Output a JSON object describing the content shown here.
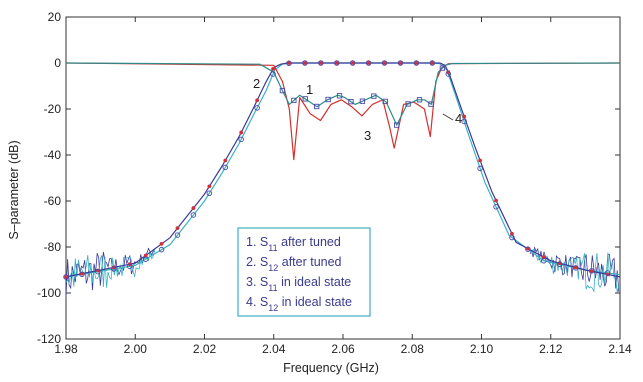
{
  "chart_data": {
    "type": "line",
    "xlabel": "Frequency (GHz)",
    "ylabel": "S–parameter (dB)",
    "xlim": [
      1.98,
      2.14
    ],
    "ylim": [
      -120,
      20
    ],
    "xticks": [
      "1.98",
      "2.00",
      "2.02",
      "2.04",
      "2.06",
      "2.08",
      "2.10",
      "2.12",
      "2.14"
    ],
    "yticks": [
      "20",
      "0",
      "-20",
      "-40",
      "-60",
      "-80",
      "-100",
      "-120"
    ],
    "grid": false,
    "legend_position": "bottom-center",
    "legend": [
      {
        "num": "1. S",
        "sub": "11",
        "rest": " after tuned"
      },
      {
        "num": "2. S",
        "sub": "12",
        "rest": " after tuned"
      },
      {
        "num": "3. S",
        "sub": "11",
        "rest": " in ideal state"
      },
      {
        "num": "4. S",
        "sub": "12",
        "rest": " in ideal state"
      }
    ],
    "curve_labels": [
      "1",
      "2",
      "3",
      "4"
    ],
    "colors": {
      "s11_tuned": "#2e8b8b",
      "s12_tuned": "#3a3a9a",
      "s11_ideal": "#d23030",
      "s12_ideal": "#3cb0c0",
      "marker_red": "#d0303a",
      "marker_blue": "#4a4aa8",
      "legend_border": "#3cb0c0"
    },
    "series": [
      {
        "key": "s11_tuned",
        "x": [
          1.98,
          2.036,
          2.04,
          2.0425,
          2.0445,
          2.0475,
          2.0505,
          2.0525,
          2.0555,
          2.0585,
          2.0605,
          2.0635,
          2.0665,
          2.0695,
          2.0725,
          2.0755,
          2.0785,
          2.0815,
          2.0835,
          2.0855,
          2.0875,
          2.0895,
          2.0915,
          2.14
        ],
        "y": [
          0,
          -0.5,
          -4,
          -12,
          -18,
          -14,
          -17,
          -19,
          -16,
          -14,
          -15,
          -18,
          -16,
          -14,
          -17,
          -27,
          -18,
          -16,
          -16,
          -18,
          -4,
          -1,
          -0.2,
          0
        ]
      },
      {
        "key": "s11_ideal",
        "x": [
          1.98,
          2.04,
          2.0425,
          2.0445,
          2.0458,
          2.0475,
          2.0505,
          2.0535,
          2.0565,
          2.0595,
          2.0625,
          2.0655,
          2.0685,
          2.0715,
          2.0735,
          2.0748,
          2.0775,
          2.0805,
          2.0835,
          2.0852,
          2.0868,
          2.0885,
          2.0905,
          2.14
        ],
        "y": [
          0,
          -1,
          -8,
          -20,
          -42,
          -15,
          -22,
          -25,
          -18,
          -16,
          -19,
          -23,
          -18,
          -16,
          -28,
          -37,
          -18,
          -17,
          -20,
          -32,
          -8,
          -2,
          -0.3,
          0
        ]
      },
      {
        "key": "s12_tuned",
        "x": [
          1.98,
          2.0,
          2.01,
          2.02,
          2.025,
          2.03,
          2.034,
          2.0375,
          2.04,
          2.042,
          2.044,
          2.088,
          2.0895,
          2.091,
          2.094,
          2.098,
          2.103,
          2.11,
          2.12,
          2.13,
          2.14
        ],
        "y": [
          -93,
          -87,
          -76,
          -57,
          -45,
          -32,
          -20,
          -9,
          -2,
          -0.5,
          0,
          0,
          -1,
          -6,
          -19,
          -36,
          -56,
          -78,
          -86,
          -90,
          -93
        ]
      },
      {
        "key": "s12_ideal",
        "x": [
          1.98,
          2.0,
          2.01,
          2.02,
          2.025,
          2.03,
          2.034,
          2.0378,
          2.0403,
          2.0425,
          2.045,
          2.086,
          2.088,
          2.09,
          2.0925,
          2.096,
          2.101,
          2.108,
          2.118,
          2.13,
          2.14
        ],
        "y": [
          -93,
          -88,
          -79,
          -60,
          -48,
          -35,
          -23,
          -12,
          -3,
          -0.5,
          0,
          0,
          -0.3,
          -3,
          -14,
          -30,
          -52,
          -75,
          -86,
          -90,
          -92
        ]
      }
    ],
    "marker_series": [
      {
        "key": "s12_tuned_markers",
        "x_start": 1.98,
        "x_end": 2.14,
        "spacing": 0.0046,
        "color_key": "marker_red",
        "shape": "dot"
      },
      {
        "key": "s12_ideal_markers",
        "x_start": 1.98,
        "x_end": 2.14,
        "spacing": 0.0046,
        "color_key": "marker_blue",
        "shape": "circle"
      },
      {
        "key": "s11_tuned_markers",
        "x_start": 2.0425,
        "x_end": 2.0895,
        "spacing": 0.0033,
        "color_key": "marker_blue",
        "shape": "square"
      }
    ]
  }
}
